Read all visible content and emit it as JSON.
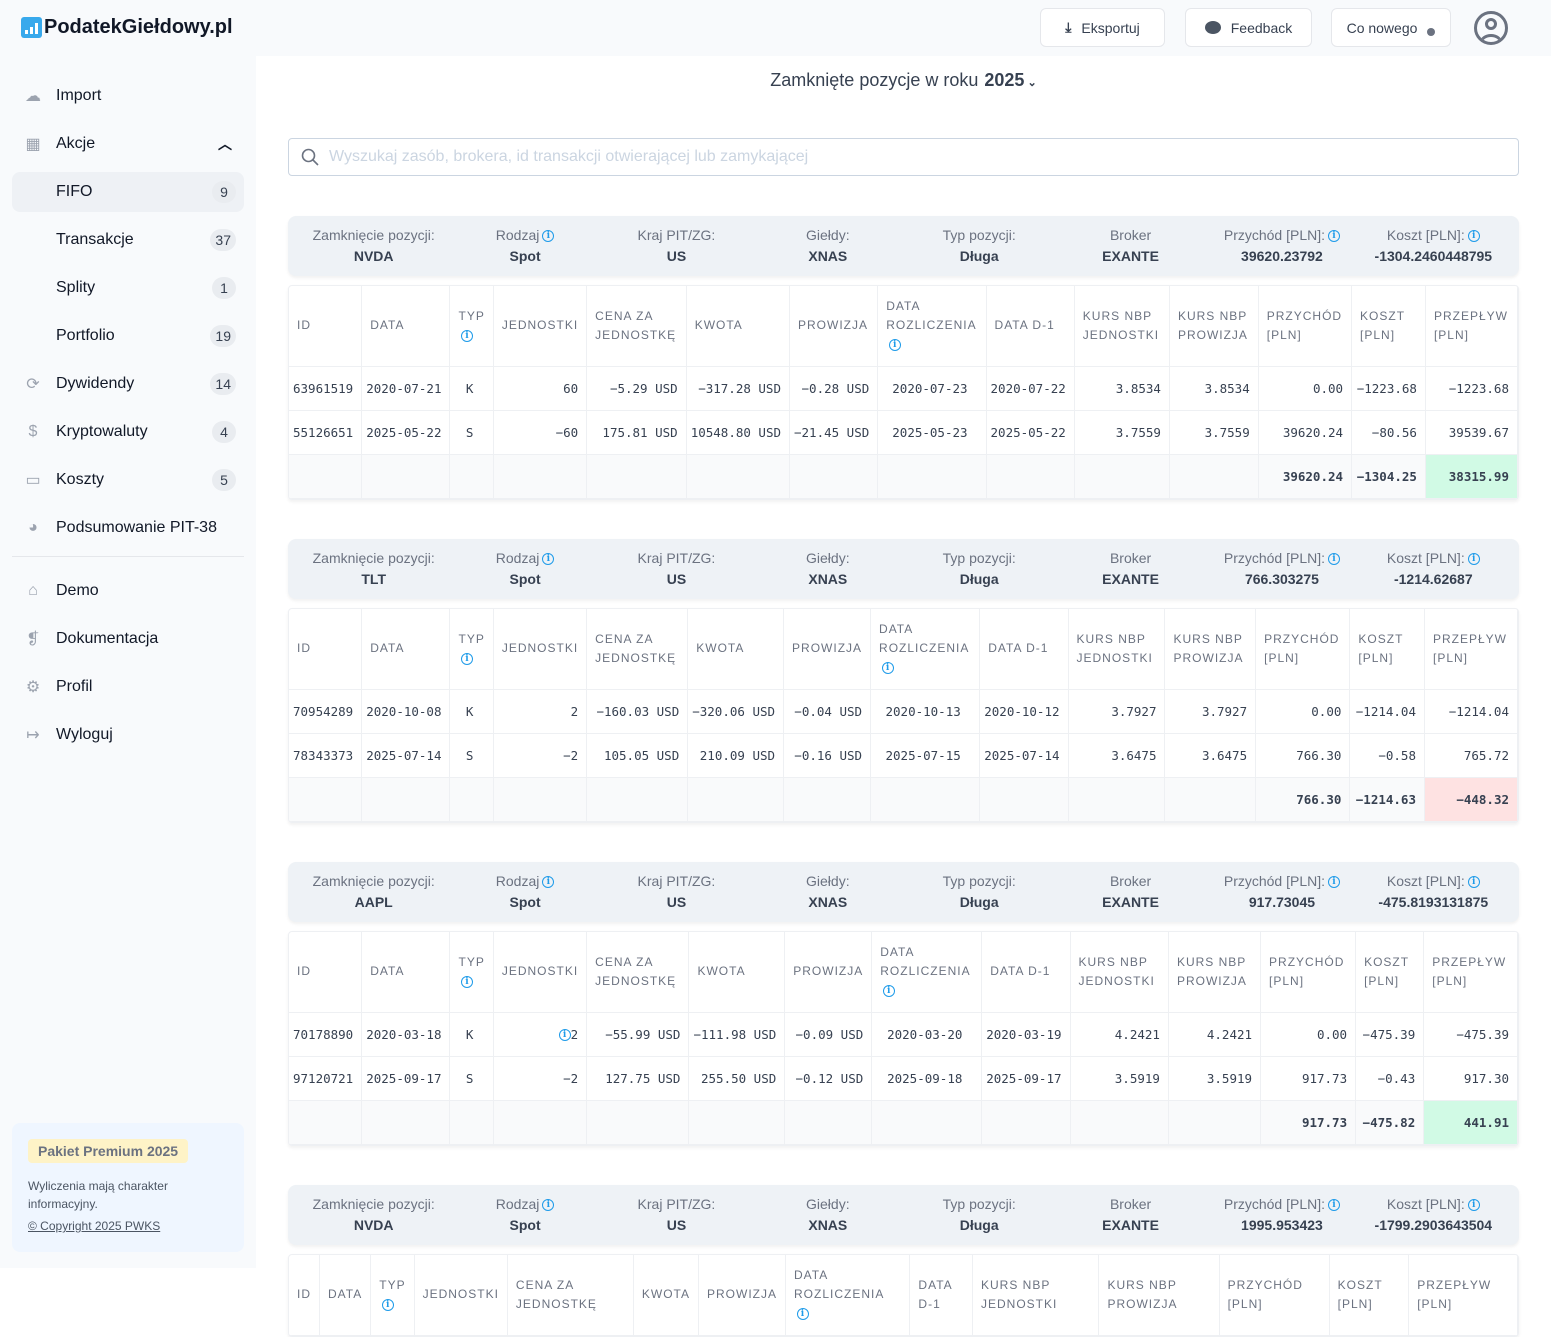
{
  "app": {
    "logo": "PodatekGiełdowy.pl"
  },
  "sidebar": {
    "items": [
      {
        "label": "Import",
        "icon": "cloud-upload-icon"
      },
      {
        "label": "Akcje",
        "icon": "chart-board-icon",
        "expanded": true
      },
      {
        "label": "FIFO",
        "badge": "9",
        "sub": true,
        "active": true
      },
      {
        "label": "Transakcje",
        "badge": "37",
        "sub": true
      },
      {
        "label": "Splity",
        "badge": "1",
        "sub": true
      },
      {
        "label": "Portfolio",
        "badge": "19",
        "sub": true
      },
      {
        "label": "Dywidendy",
        "badge": "14",
        "icon": "refresh-icon"
      },
      {
        "label": "Kryptowaluty",
        "badge": "4",
        "icon": "coin-icon"
      },
      {
        "label": "Koszty",
        "badge": "5",
        "icon": "cash-icon"
      },
      {
        "label": "Podsumowanie PIT-38",
        "icon": "pie-chart-icon"
      }
    ],
    "items2": [
      {
        "label": "Demo",
        "icon": "gift-icon"
      },
      {
        "label": "Dokumentacja",
        "icon": "document-icon"
      },
      {
        "label": "Profil",
        "icon": "gear-icon"
      },
      {
        "label": "Wyloguj",
        "icon": "logout-icon"
      }
    ],
    "promo": {
      "badge": "Pakiet Premium 2025",
      "text": "Wyliczenia mają charakter informacyjny.",
      "copyright": "© Copyright 2025 PWKS"
    }
  },
  "topbar": {
    "export": "Eksportuj",
    "feedback": "Feedback",
    "news": "Co nowego"
  },
  "page": {
    "title": "Zamknięte pozycje w roku",
    "year": "2025"
  },
  "search": {
    "placeholder": "Wyszukaj zasób, brokera, id transakcji otwierającej lub zamykającej",
    "value": ""
  },
  "card_labels": [
    "Zamknięcie pozycji:",
    "Rodzaj",
    "Kraj PIT/ZG:",
    "Giełdy:",
    "Typ pozycji:",
    "Broker",
    "Przychód [PLN]:",
    "Koszt [PLN]:"
  ],
  "columns": [
    "ID",
    "DATA",
    "TYP",
    "JEDNOSTKI",
    "CENA ZA JEDNOSTKĘ",
    "KWOTA",
    "PROWIZJA",
    "DATA ROZLICZENIA",
    "DATA D-1",
    "KURS NBP JEDNOSTKI",
    "KURS NBP PROWIZJA",
    "PRZYCHÓD [PLN]",
    "KOSZT [PLN]",
    "PRZEPŁYW [PLN]"
  ],
  "colors": {
    "accent": "#1e9be9",
    "positive": "#d1fae5",
    "negative": "#fee2e2"
  },
  "positions": [
    {
      "card": [
        "NVDA",
        "Spot",
        "US",
        "XNAS",
        "Długa",
        "EXANTE",
        "39620.23792",
        "-1304.2460448795"
      ],
      "rows": [
        [
          "63961519",
          "2020-07-21",
          "K",
          "60",
          "−5.29 USD",
          "−317.28 USD",
          "−0.28 USD",
          "2020-07-23",
          "2020-07-22",
          "3.8534",
          "3.8534",
          "0.00",
          "−1223.68",
          "−1223.68"
        ],
        [
          "55126651",
          "2025-05-22",
          "S",
          "−60",
          "175.81 USD",
          "10548.80 USD",
          "−21.45 USD",
          "2025-05-23",
          "2025-05-22",
          "3.7559",
          "3.7559",
          "39620.24",
          "−80.56",
          "39539.67"
        ]
      ],
      "totals": [
        "39620.24",
        "−1304.25",
        "38315.99"
      ],
      "result": "positive"
    },
    {
      "card": [
        "TLT",
        "Spot",
        "US",
        "XNAS",
        "Długa",
        "EXANTE",
        "766.303275",
        "-1214.62687"
      ],
      "rows": [
        [
          "70954289",
          "2020-10-08",
          "K",
          "2",
          "−160.03 USD",
          "−320.06 USD",
          "−0.04 USD",
          "2020-10-13",
          "2020-10-12",
          "3.7927",
          "3.7927",
          "0.00",
          "−1214.04",
          "−1214.04"
        ],
        [
          "78343373",
          "2025-07-14",
          "S",
          "−2",
          "105.05 USD",
          "210.09 USD",
          "−0.16 USD",
          "2025-07-15",
          "2025-07-14",
          "3.6475",
          "3.6475",
          "766.30",
          "−0.58",
          "765.72"
        ]
      ],
      "totals": [
        "766.30",
        "−1214.63",
        "−448.32"
      ],
      "result": "negative"
    },
    {
      "card": [
        "AAPL",
        "Spot",
        "US",
        "XNAS",
        "Długa",
        "EXANTE",
        "917.73045",
        "-475.8193131875"
      ],
      "rows": [
        [
          "70178890",
          "2020-03-18",
          "K",
          "2",
          "−55.99 USD",
          "−111.98 USD",
          "−0.09 USD",
          "2020-03-20",
          "2020-03-19",
          "4.2421",
          "4.2421",
          "0.00",
          "−475.39",
          "−475.39"
        ],
        [
          "97120721",
          "2025-09-17",
          "S",
          "−2",
          "127.75 USD",
          "255.50 USD",
          "−0.12 USD",
          "2025-09-18",
          "2025-09-17",
          "3.5919",
          "3.5919",
          "917.73",
          "−0.43",
          "917.30"
        ]
      ],
      "totals": [
        "917.73",
        "−475.82",
        "441.91"
      ],
      "result": "positive",
      "units_info_row": 0
    },
    {
      "card": [
        "NVDA",
        "Spot",
        "US",
        "XNAS",
        "Długa",
        "EXANTE",
        "1995.953423",
        "-1799.2903643504"
      ],
      "rows": [],
      "totals": []
    }
  ]
}
